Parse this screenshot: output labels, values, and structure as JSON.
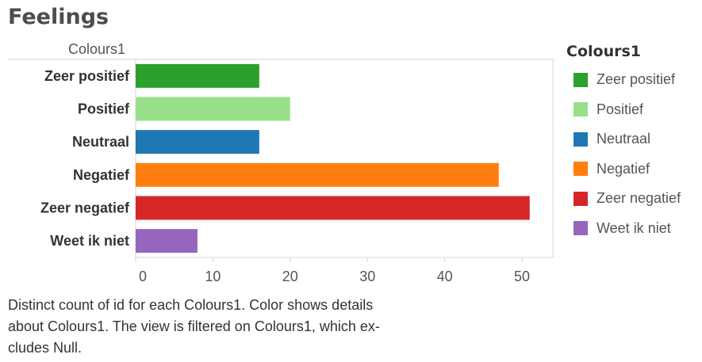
{
  "title": "Feelings",
  "caption_lines": [
    "Distinct count of id for each Colours1.  Color shows details",
    "about Colours1. The view is filtered on Colours1, which ex-",
    "cludes Null."
  ],
  "legend": {
    "title": "Colours1"
  },
  "chart_data": {
    "type": "bar",
    "orientation": "horizontal",
    "title": "Feelings",
    "ylabel": "Colours1",
    "xlabel": "",
    "categories": [
      "Zeer positief",
      "Positief",
      "Neutraal",
      "Negatief",
      "Zeer negatief",
      "Weet ik niet"
    ],
    "values": [
      16,
      20,
      16,
      47,
      51,
      8
    ],
    "colors": [
      "#2ca02c",
      "#98df8a",
      "#1f77b4",
      "#ff7f0e",
      "#d62728",
      "#9467bd"
    ],
    "xlim": [
      0,
      54
    ],
    "xticks": [
      0,
      10,
      20,
      30,
      40,
      50
    ],
    "grid": false,
    "legend_position": "right"
  }
}
